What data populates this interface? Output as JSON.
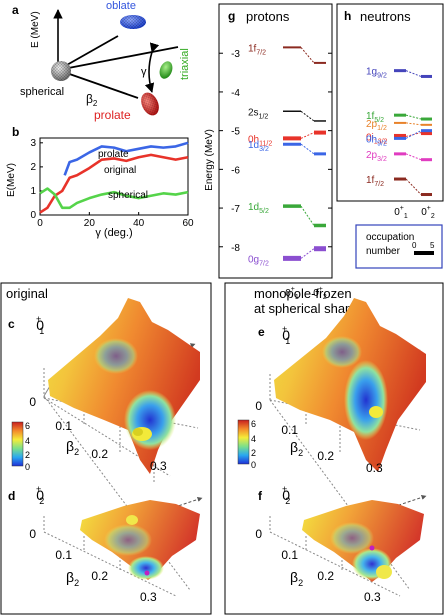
{
  "panel_letters": {
    "a": "a",
    "b": "b",
    "c": "c",
    "d": "d",
    "e": "e",
    "f": "f",
    "g": "g",
    "h": "h"
  },
  "panel_a": {
    "ylabel": "E (MeV)",
    "labels": {
      "oblate": "oblate",
      "triaxial": "triaxial",
      "spherical": "spherical",
      "prolate": "prolate",
      "gamma": "γ",
      "beta": "β",
      "beta_sub": "2"
    },
    "colors": {
      "oblate": "#3355dd",
      "triaxial": "#33aa22",
      "prolate": "#dd2222",
      "spherical": "#888888"
    }
  },
  "panel_b": {
    "ylabel": "E(MeV)",
    "xlabel": "γ (deg.)",
    "xticks": [
      "0",
      "20",
      "40",
      "60"
    ],
    "yticks": [
      "0",
      "1",
      "2",
      "3"
    ],
    "curve_labels": {
      "prolate": "prolate",
      "original": "original",
      "spherical": "spherical"
    }
  },
  "chart_data": [
    {
      "type": "line",
      "xlabel": "γ (deg.)",
      "ylabel": "E(MeV)",
      "xlim": [
        0,
        60
      ],
      "ylim": [
        0,
        3.2
      ],
      "series": [
        {
          "name": "prolate",
          "color": "#3b66e6",
          "x": [
            10,
            12,
            15,
            20,
            25,
            30,
            35,
            40,
            45,
            50,
            55,
            60
          ],
          "y": [
            1.65,
            2.2,
            2.3,
            2.6,
            2.85,
            2.8,
            2.65,
            2.75,
            2.85,
            2.8,
            2.85,
            3.0
          ]
        },
        {
          "name": "original",
          "color": "#e8332a",
          "x": [
            0,
            3,
            6,
            9,
            12,
            15,
            20,
            25,
            30,
            35,
            40,
            45,
            50,
            55,
            60
          ],
          "y": [
            0.1,
            0.3,
            0.8,
            1.0,
            1.55,
            1.65,
            1.95,
            2.3,
            2.35,
            2.25,
            2.4,
            2.5,
            2.4,
            2.3,
            2.4
          ]
        },
        {
          "name": "spherical",
          "color": "#55d44a",
          "x": [
            0,
            3,
            6,
            9,
            12,
            15,
            20,
            25,
            30,
            35,
            40,
            45,
            50,
            55,
            60
          ],
          "y": [
            0.9,
            1.1,
            0.85,
            0.3,
            0.3,
            0.5,
            0.7,
            0.85,
            0.95,
            0.8,
            0.7,
            0.8,
            0.9,
            0.85,
            0.95
          ]
        }
      ]
    },
    {
      "type": "line",
      "title": "protons",
      "ylabel": "Energy (MeV)",
      "yticks": [
        "-3",
        "-4",
        "-5",
        "-6",
        "-7",
        "-8"
      ],
      "ylim": [
        -8.6,
        -2.4
      ],
      "categories": [
        "0⁺₁",
        "0⁺₂"
      ],
      "levels": [
        {
          "label": "1f7/2",
          "color": "#8b2a20",
          "e1": -2.85,
          "e2": -3.25
        },
        {
          "label": "2s1/2",
          "color": "#111111",
          "e1": -4.5,
          "e2": -4.75
        },
        {
          "label": "0h11/2",
          "color": "#e8332a",
          "e1": -5.2,
          "e2": -5.05
        },
        {
          "label": "1d3/2",
          "color": "#3b66e6",
          "e1": -5.35,
          "e2": -5.6
        },
        {
          "label": "1d5/2",
          "color": "#3aa83a",
          "e1": -6.95,
          "e2": -7.45
        },
        {
          "label": "0g7/2",
          "color": "#8b4fd0",
          "e1": -8.3,
          "e2": -8.05
        }
      ]
    },
    {
      "type": "line",
      "title": "neutrons",
      "categories": [
        "0⁺₁",
        "0⁺₂"
      ],
      "levels": [
        {
          "label": "1g9/2",
          "color": "#4444bb",
          "e1": -3.45,
          "e2": -3.6
        },
        {
          "label": "1f5/2",
          "color": "#3aa83a",
          "e1": -4.6,
          "e2": -4.7
        },
        {
          "label": "2p1/2",
          "color": "#e8822a",
          "e1": -4.8,
          "e2": -4.85
        },
        {
          "label": "0i13/2",
          "color": "#e8332a",
          "e1": -5.15,
          "e2": -5.05
        },
        {
          "label": "0h9/2",
          "color": "#3b66e6",
          "e1": -5.2,
          "e2": -5.0
        },
        {
          "label": "2p3/2",
          "color": "#e03cc0",
          "e1": -5.6,
          "e2": -5.75
        },
        {
          "label": "1f7/2",
          "color": "#8b2a20",
          "e1": -6.25,
          "e2": -6.65
        }
      ]
    }
  ],
  "panel_g": {
    "title": "protons",
    "ylabel": "Energy (MeV)",
    "xcat1": "0",
    "xcat2": "0",
    "sup": "+",
    "sub1": "1",
    "sub2": "2",
    "level_labels": [
      {
        "main": "1f",
        "sub": "7/2"
      },
      {
        "main": "2s",
        "sub": "1/2"
      },
      {
        "main": "0h",
        "sub": "11/2"
      },
      {
        "main": "1d",
        "sub": "3/2"
      },
      {
        "main": "1d",
        "sub": "5/2"
      },
      {
        "main": "0g",
        "sub": "7/2"
      }
    ]
  },
  "panel_h": {
    "title": "neutrons",
    "xcat1": "0",
    "xcat2": "0",
    "sup": "+",
    "sub1": "1",
    "sub2": "2",
    "level_labels": [
      {
        "main": "1g",
        "sub": "9/2"
      },
      {
        "main": "1f",
        "sub": "5/2"
      },
      {
        "main": "2p",
        "sub": "1/2"
      },
      {
        "main": "0i",
        "sub": "13/2"
      },
      {
        "main": "0h",
        "sub": "9/2"
      },
      {
        "main": "2p",
        "sub": "3/2"
      },
      {
        "main": "1f",
        "sub": "7/2"
      }
    ]
  },
  "legend_occupation": {
    "label": "occupation number",
    "tick0": "0",
    "tick5": "5"
  },
  "bottom_left": {
    "title": "original",
    "state_c": {
      "main": "0",
      "sup": "+",
      "sub": "1"
    },
    "state_d": {
      "main": "0",
      "sup": "+",
      "sub": "2"
    },
    "ticks": [
      "0",
      "0.1",
      "0.2",
      "0.3"
    ],
    "beta": "β",
    "beta_sub": "2",
    "colorbar_ticks": [
      "6",
      "4",
      "2",
      "0"
    ]
  },
  "bottom_right": {
    "title_line1": "monopole-frozen",
    "title_line2": "at spherical shape",
    "state_e": {
      "main": "0",
      "sup": "+",
      "sub": "1"
    },
    "state_f": {
      "main": "0",
      "sup": "+",
      "sub": "2"
    },
    "ticks": [
      "0",
      "0.1",
      "0.2",
      "0.3"
    ],
    "beta": "β",
    "beta_sub": "2",
    "colorbar_ticks": [
      "6",
      "4",
      "2",
      "0"
    ]
  }
}
